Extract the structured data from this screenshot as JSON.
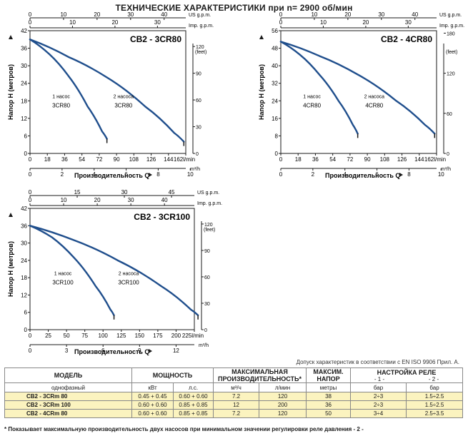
{
  "title": "ТЕХНИЧЕСКИЕ ХАРАКТЕРИСТИКИ при n= 2900 об/мин",
  "colors": {
    "curve": "#1f4e8c",
    "axis": "#1a1a1a",
    "table_highlight": "#fbf3bf"
  },
  "chart_data": [
    {
      "type": "line",
      "title": "CB2 - 3CR80",
      "ylabel": "Напор H  (метров)",
      "xlabel": "Производительность Q",
      "ylim": [
        0,
        42
      ],
      "xlim": [
        0,
        162
      ],
      "y_ticks": [
        0,
        6,
        12,
        18,
        24,
        30,
        36,
        42
      ],
      "x_ticks": [
        0,
        18,
        36,
        54,
        72,
        90,
        108,
        126,
        144,
        162
      ],
      "x_unit": "l/min",
      "top_axis_label": "US g.p.m.",
      "top_axis_ticks": [
        0,
        10,
        20,
        30,
        40
      ],
      "top_axis_label2": "Imp. g.p.m.",
      "top_axis_ticks2": [
        0,
        10,
        20,
        30
      ],
      "right_axis_label": "(feet)",
      "right_axis_ticks": [
        0,
        30,
        60,
        90,
        120
      ],
      "bottom_axis_label2": "m³/h",
      "bottom_axis_ticks2": [
        0,
        2,
        4,
        6,
        8,
        10
      ],
      "series": [
        {
          "name": "1 насос 3CR80",
          "x": [
            0,
            20,
            40,
            60,
            75,
            80
          ],
          "y": [
            39,
            34,
            26.5,
            16,
            7.5,
            5
          ]
        },
        {
          "name": "2 насоса 3CR80",
          "x": [
            0,
            40,
            80,
            120,
            150,
            160
          ],
          "y": [
            39,
            33,
            26,
            16,
            7,
            4
          ]
        }
      ],
      "annotations": [
        {
          "line1": "1 насос",
          "line2": "3CR80"
        },
        {
          "line1": "2 насоса",
          "line2": "3CR80"
        }
      ]
    },
    {
      "type": "line",
      "title": "CB2 - 4CR80",
      "ylabel": "Напор H  (метров)",
      "xlabel": "Производительность Q",
      "ylim": [
        0,
        56
      ],
      "xlim": [
        0,
        162
      ],
      "y_ticks": [
        0,
        8,
        16,
        24,
        32,
        40,
        48,
        56
      ],
      "x_ticks": [
        0,
        18,
        36,
        54,
        72,
        90,
        108,
        126,
        144,
        162
      ],
      "x_unit": "l/min",
      "top_axis_label": "US g.p.m.",
      "top_axis_ticks": [
        0,
        10,
        20,
        30,
        40
      ],
      "top_axis_label2": "Imp. g.p.m.",
      "top_axis_ticks2": [
        0,
        10,
        20,
        30
      ],
      "right_axis_label": "(feet)",
      "right_axis_ticks": [
        0,
        60,
        120,
        180
      ],
      "bottom_axis_label2": "m³/h",
      "bottom_axis_ticks2": [
        0,
        2,
        4,
        6,
        8,
        10
      ],
      "series": [
        {
          "name": "1 насос 4CR80",
          "x": [
            0,
            20,
            40,
            60,
            75,
            80
          ],
          "y": [
            51,
            45,
            36,
            24,
            13,
            9
          ]
        },
        {
          "name": "2 насоса 4CR80",
          "x": [
            0,
            40,
            80,
            120,
            150,
            160
          ],
          "y": [
            51,
            44.5,
            36,
            24,
            13,
            9
          ]
        }
      ],
      "annotations": [
        {
          "line1": "1 насос",
          "line2": "4CR80"
        },
        {
          "line1": "2 насоса",
          "line2": "4CR80"
        }
      ]
    },
    {
      "type": "line",
      "title": "CB2 - 3CR100",
      "ylabel": "Напор H  (метров)",
      "xlabel": "Производительность Q",
      "ylim": [
        0,
        42
      ],
      "xlim": [
        0,
        225
      ],
      "y_ticks": [
        0,
        6,
        12,
        18,
        24,
        30,
        36,
        42
      ],
      "x_ticks": [
        0,
        25,
        50,
        75,
        100,
        125,
        150,
        175,
        200,
        225
      ],
      "x_unit": "l/min",
      "top_axis_label": "US g.p.m.",
      "top_axis_ticks": [
        0,
        15,
        30,
        45
      ],
      "top_axis_label2": "Imp. g.p.m.",
      "top_axis_ticks2": [
        0,
        10,
        20,
        30,
        40
      ],
      "right_axis_label": "(feet)",
      "right_axis_ticks": [
        0,
        30,
        60,
        90,
        120
      ],
      "bottom_axis_label2": "m³/h",
      "bottom_axis_ticks2": [
        0,
        3,
        6,
        9,
        12
      ],
      "series": [
        {
          "name": "1 насос 3CR100",
          "x": [
            0,
            30,
            60,
            90,
            110,
            115
          ],
          "y": [
            36,
            32,
            25,
            15,
            7,
            5
          ]
        },
        {
          "name": "2 насоса 3CR100",
          "x": [
            0,
            60,
            120,
            180,
            220,
            230
          ],
          "y": [
            36,
            31,
            24,
            15,
            7,
            5
          ]
        }
      ],
      "annotations": [
        {
          "line1": "1 насос",
          "line2": "3CR100"
        },
        {
          "line1": "2 насоса",
          "line2": "3CR100"
        }
      ]
    }
  ],
  "tolerance_note": "Допуск характеристик в соответствии с EN ISO 9906 Прил.  А.",
  "table": {
    "header1": [
      "МОДЕЛЬ",
      "МОЩНОСТЬ",
      "МАКСИМАЛЬНАЯ",
      "МАКСИМ.",
      "НАСТРОЙКА РЕЛЕ"
    ],
    "header1b": [
      "ПРОИЗВОДИТЕЛЬНОСТЬ*",
      "НАПОР"
    ],
    "header2": [
      "однофазный",
      "кВт",
      "л.с.",
      "м³/ч",
      "л/мин",
      "метры",
      "- 1 -",
      "- 2 -"
    ],
    "header3": [
      "бар",
      "бар"
    ],
    "rows": [
      [
        "CB2 - 3CRm 80",
        "0.45 + 0.45",
        "0.60 + 0.60",
        "7.2",
        "120",
        "38",
        "2÷3",
        "1.5÷2.5"
      ],
      [
        "CB2 - 3CRm 100",
        "0.60 + 0.60",
        "0.85 + 0.85",
        "12",
        "200",
        "36",
        "2÷3",
        "1.5÷2.5"
      ],
      [
        "CB2 - 4CRm 80",
        "0.60 + 0.60",
        "0.85 + 0.85",
        "7.2",
        "120",
        "50",
        "3÷4",
        "2.5÷3.5"
      ]
    ]
  },
  "footnote": "* Показывает максимальную производительность двух насосов при минимальном значении регулировки реле давления - 2 -"
}
